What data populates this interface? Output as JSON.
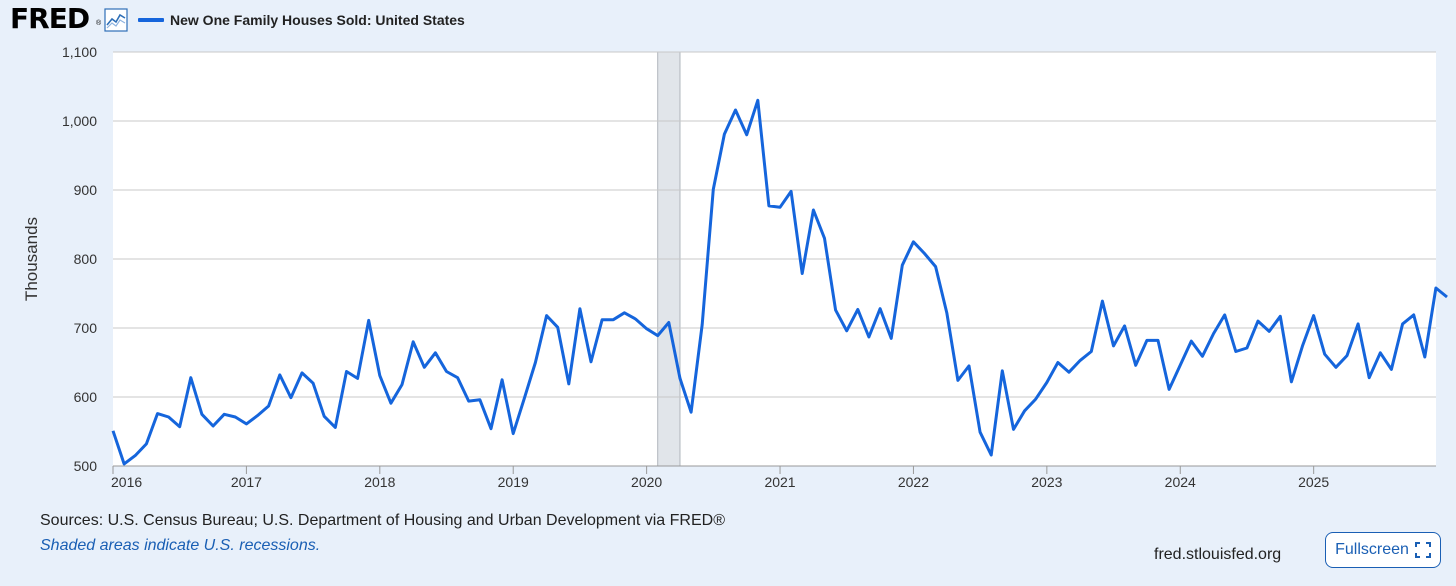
{
  "header": {
    "logo_text": "FRED",
    "logo_mark": "®",
    "graph_icon": "line-graph-icon",
    "legend_label": "New One Family Houses Sold: United States"
  },
  "chart_data": {
    "type": "line",
    "title": "New One Family Houses Sold: United States",
    "xlabel": "",
    "ylabel": "Thousands",
    "ylim": [
      500,
      1100
    ],
    "yticks": [
      500,
      600,
      700,
      800,
      900,
      1000,
      1100
    ],
    "ytick_labels": [
      "500",
      "600",
      "700",
      "800",
      "900",
      "1,000",
      "1,100"
    ],
    "xlim": [
      2016.0,
      2025.917
    ],
    "xtick_labels": [
      "2016",
      "2017",
      "2018",
      "2019",
      "2020",
      "2021",
      "2022",
      "2023",
      "2024",
      "2025"
    ],
    "grid": true,
    "recession": {
      "start": 2020.083,
      "end": 2020.25
    },
    "series": [
      {
        "name": "New One Family Houses Sold: United States",
        "color": "#1565dc",
        "start": 2016.0,
        "step": 0.08333,
        "values": [
          551,
          503,
          515,
          532,
          576,
          571,
          557,
          628,
          575,
          558,
          575,
          571,
          561,
          573,
          587,
          632,
          599,
          635,
          620,
          572,
          556,
          637,
          627,
          711,
          631,
          591,
          618,
          680,
          643,
          664,
          637,
          628,
          594,
          596,
          554,
          625,
          547,
          598,
          650,
          718,
          701,
          619,
          728,
          651,
          712,
          712,
          722,
          713,
          699,
          689,
          708,
          627,
          578,
          705,
          901,
          981,
          1016,
          980,
          1030,
          877,
          875,
          898,
          779,
          871,
          830,
          726,
          696,
          727,
          687,
          728,
          685,
          791,
          825,
          808,
          789,
          722,
          624,
          645,
          549,
          516,
          638,
          553,
          580,
          597,
          621,
          650,
          636,
          653,
          666,
          739,
          674,
          703,
          646,
          682,
          682,
          611,
          646,
          681,
          659,
          692,
          719,
          666,
          671,
          710,
          695,
          717,
          622,
          674,
          718,
          662,
          643,
          660,
          706,
          628,
          664,
          640,
          706,
          719,
          658,
          758,
          745
        ]
      }
    ]
  },
  "footer": {
    "sources": "Sources: U.S. Census Bureau; U.S. Department of Housing and Urban Development via FRED®",
    "shaded_note": "Shaded areas indicate U.S. recessions.",
    "site": "fred.stlouisfed.org",
    "fullscreen_label": "Fullscreen",
    "fullscreen_icon": "expand-icon"
  }
}
